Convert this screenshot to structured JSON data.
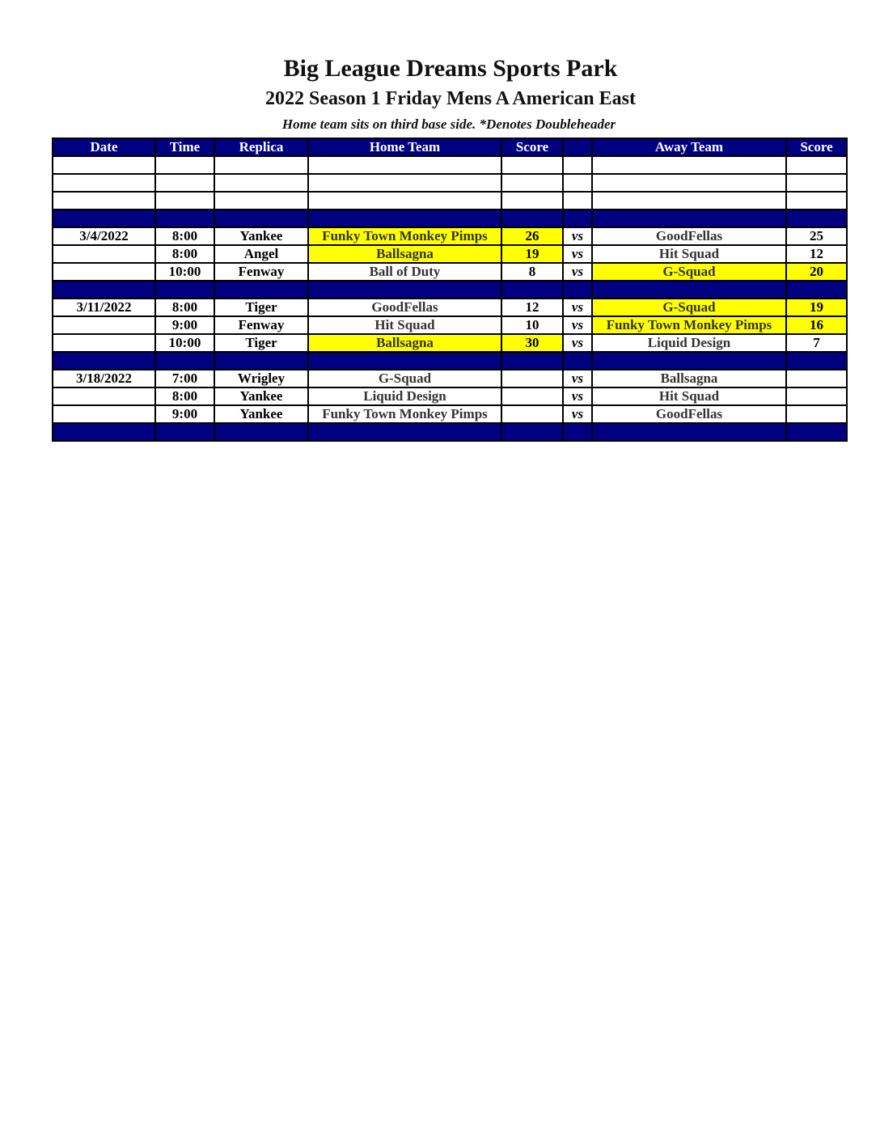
{
  "title": "Big League Dreams Sports Park",
  "subtitle": "2022 Season 1 Friday Mens A American East",
  "note": "Home team sits on third base side.  *Denotes Doubleheader",
  "colors": {
    "header": "#000080",
    "winner_highlight": "#ffff00"
  },
  "columns": [
    "Date",
    "Time",
    "Replica",
    "Home Team",
    "Score",
    "",
    "Away Team",
    "Score"
  ],
  "rows": [
    {
      "type": "blank"
    },
    {
      "type": "blank"
    },
    {
      "type": "blank"
    },
    {
      "type": "sep"
    },
    {
      "type": "game",
      "date": "3/4/2022",
      "time": "8:00",
      "field": "Yankee",
      "home": "Funky Town Monkey Pimps",
      "home_score": "26",
      "vs": "vs",
      "away": "GoodFellas",
      "away_score": "25",
      "winner": "home"
    },
    {
      "type": "game",
      "date": "",
      "time": "8:00",
      "field": "Angel",
      "home": "Ballsagna",
      "home_score": "19",
      "vs": "vs",
      "away": "Hit Squad",
      "away_score": "12",
      "winner": "home"
    },
    {
      "type": "game",
      "date": "",
      "time": "10:00",
      "field": "Fenway",
      "home": "Ball of Duty",
      "home_score": "8",
      "vs": "vs",
      "away": "G-Squad",
      "away_score": "20",
      "winner": "away"
    },
    {
      "type": "sep"
    },
    {
      "type": "game",
      "date": "3/11/2022",
      "time": "8:00",
      "field": "Tiger",
      "home": "GoodFellas",
      "home_score": "12",
      "vs": "vs",
      "away": "G-Squad",
      "away_score": "19",
      "winner": "away"
    },
    {
      "type": "game",
      "date": "",
      "time": "9:00",
      "field": "Fenway",
      "home": "Hit Squad",
      "home_score": "10",
      "vs": "vs",
      "away": "Funky Town Monkey Pimps",
      "away_score": "16",
      "winner": "away"
    },
    {
      "type": "game",
      "date": "",
      "time": "10:00",
      "field": "Tiger",
      "home": "Ballsagna",
      "home_score": "30",
      "vs": "vs",
      "away": "Liquid Design",
      "away_score": "7",
      "winner": "home"
    },
    {
      "type": "sep"
    },
    {
      "type": "game",
      "date": "3/18/2022",
      "time": "7:00",
      "field": "Wrigley",
      "home": "G-Squad",
      "home_score": "",
      "vs": "vs",
      "away": "Ballsagna",
      "away_score": "",
      "winner": ""
    },
    {
      "type": "game",
      "date": "",
      "time": "8:00",
      "field": "Yankee",
      "home": "Liquid Design",
      "home_score": "",
      "vs": "vs",
      "away": "Hit Squad",
      "away_score": "",
      "winner": ""
    },
    {
      "type": "game",
      "date": "",
      "time": "9:00",
      "field": "Yankee",
      "home": "Funky Town Monkey Pimps",
      "home_score": "",
      "vs": "vs",
      "away": "GoodFellas",
      "away_score": "",
      "winner": ""
    },
    {
      "type": "sep"
    }
  ]
}
